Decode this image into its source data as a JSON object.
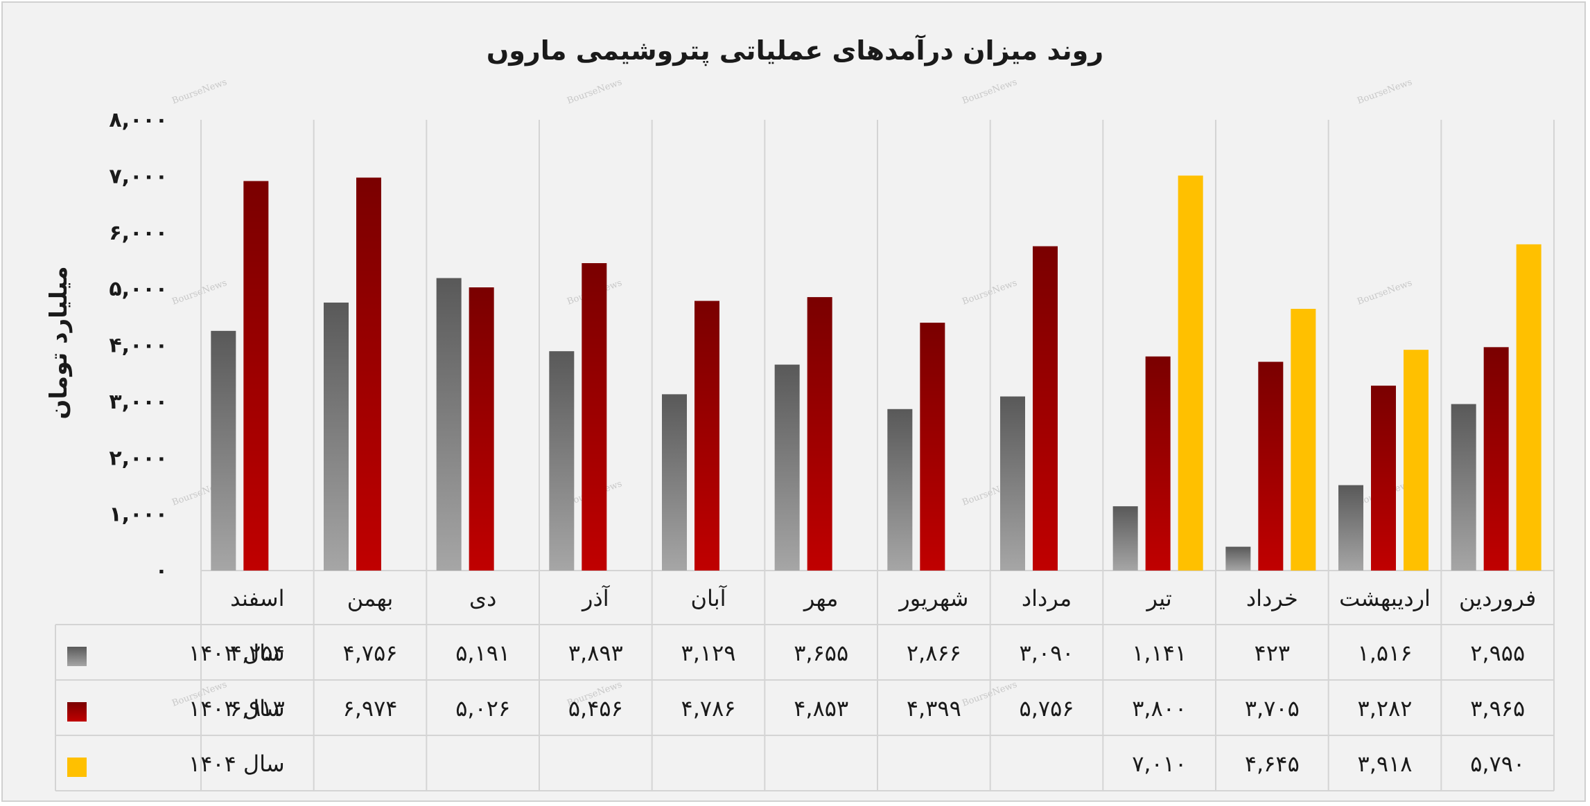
{
  "chart_data": {
    "type": "bar",
    "title": "روند میزان درآمدهای عملیاتی پتروشیمی ماروں",
    "ylabel": "میلیارد تومان",
    "xlabel": "",
    "ylim": [
      0,
      8000
    ],
    "yticks": [
      0,
      1000,
      2000,
      3000,
      4000,
      5000,
      6000,
      7000,
      8000
    ],
    "ytick_labels": [
      "۰",
      "۱,۰۰۰",
      "۲,۰۰۰",
      "۳,۰۰۰",
      "۴,۰۰۰",
      "۵,۰۰۰",
      "۶,۰۰۰",
      "۷,۰۰۰",
      "۸,۰۰۰"
    ],
    "grid": "vertical",
    "legend": "bottom-table",
    "categories": [
      "فروردین",
      "اردیبهشت",
      "خرداد",
      "تیر",
      "مرداد",
      "شهریور",
      "مهر",
      "آبان",
      "آذر",
      "دی",
      "بهمن",
      "اسفند"
    ],
    "series": [
      {
        "name": "سال ۱۴۰۲",
        "color": "#7f7f7f",
        "values": [
          2955,
          1516,
          423,
          1141,
          3090,
          2866,
          3655,
          3129,
          3893,
          5191,
          4756,
          4254
        ],
        "labels": [
          "۲,۹۵۵",
          "۱,۵۱۶",
          "۴۲۳",
          "۱,۱۴۱",
          "۳,۰۹۰",
          "۲,۸۶۶",
          "۳,۶۵۵",
          "۳,۱۲۹",
          "۳,۸۹۳",
          "۵,۱۹۱",
          "۴,۷۵۶",
          "۴,۲۵۴"
        ]
      },
      {
        "name": "سال ۱۴۰۳",
        "color": "#c00000",
        "values": [
          3965,
          3282,
          3705,
          3800,
          5756,
          4399,
          4853,
          4786,
          5456,
          5026,
          6974,
          6913
        ],
        "labels": [
          "۳,۹۶۵",
          "۳,۲۸۲",
          "۳,۷۰۵",
          "۳,۸۰۰",
          "۵,۷۵۶",
          "۴,۳۹۹",
          "۴,۸۵۳",
          "۴,۷۸۶",
          "۵,۴۵۶",
          "۵,۰۲۶",
          "۶,۹۷۴",
          "۶,۹۱۳"
        ]
      },
      {
        "name": "سال ۱۴۰۴",
        "color": "#ffc000",
        "values": [
          5790,
          3918,
          4645,
          7010,
          null,
          null,
          null,
          null,
          null,
          null,
          null,
          null
        ],
        "labels": [
          "۵,۷۹۰",
          "۳,۹۱۸",
          "۴,۶۴۵",
          "۷,۰۱۰",
          "",
          "",
          "",
          "",
          "",
          "",
          "",
          ""
        ]
      }
    ],
    "watermark": "BourseNews"
  }
}
